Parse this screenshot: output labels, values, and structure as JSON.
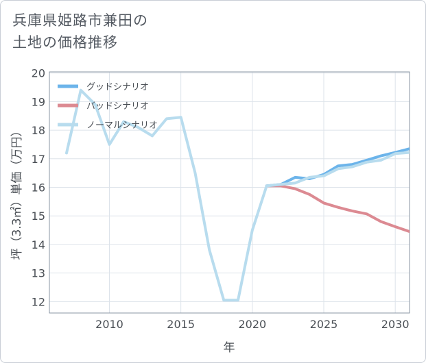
{
  "title": {
    "line1": "兵庫県姫路市兼田の",
    "line2": "土地の価格推移"
  },
  "chart_data": {
    "type": "line",
    "xlabel": "年",
    "ylabel": "坪（3.3㎡）単価（万円）",
    "xlim": [
      2005.8,
      2031
    ],
    "ylim": [
      11.6,
      20.04
    ],
    "xticks": [
      2010,
      2015,
      2020,
      2025,
      2030
    ],
    "yticks": [
      12,
      13,
      14,
      15,
      16,
      17,
      18,
      19,
      20
    ],
    "grid": true,
    "legend_position": "top-left",
    "series": [
      {
        "name": "グッドシナリオ",
        "color": "#6cb4ea",
        "x": [
          2021,
          2022,
          2023,
          2024,
          2025,
          2026,
          2027,
          2028,
          2029,
          2030,
          2031
        ],
        "y": [
          16.05,
          16.1,
          16.35,
          16.3,
          16.45,
          16.75,
          16.8,
          16.95,
          17.1,
          17.22,
          17.35
        ]
      },
      {
        "name": "バッドシナリオ",
        "color": "#dc8a92",
        "x": [
          2021,
          2022,
          2023,
          2024,
          2025,
          2026,
          2027,
          2028,
          2029,
          2030,
          2031
        ],
        "y": [
          16.05,
          16.05,
          15.95,
          15.75,
          15.45,
          15.3,
          15.17,
          15.07,
          14.8,
          14.62,
          14.45
        ]
      },
      {
        "name": "ノーマルシナリオ",
        "color": "#b8dcee",
        "x": [
          2007,
          2008,
          2009,
          2010,
          2011,
          2012,
          2013,
          2014,
          2015,
          2016,
          2017,
          2018,
          2019,
          2020,
          2021,
          2022,
          2023,
          2024,
          2025,
          2026,
          2027,
          2028,
          2029,
          2030,
          2031
        ],
        "y": [
          17.2,
          19.4,
          18.9,
          17.5,
          18.3,
          18.1,
          17.8,
          18.4,
          18.45,
          16.5,
          13.8,
          12.05,
          12.05,
          14.5,
          16.05,
          16.1,
          16.15,
          16.35,
          16.4,
          16.65,
          16.72,
          16.88,
          16.95,
          17.18,
          17.22
        ]
      }
    ]
  }
}
